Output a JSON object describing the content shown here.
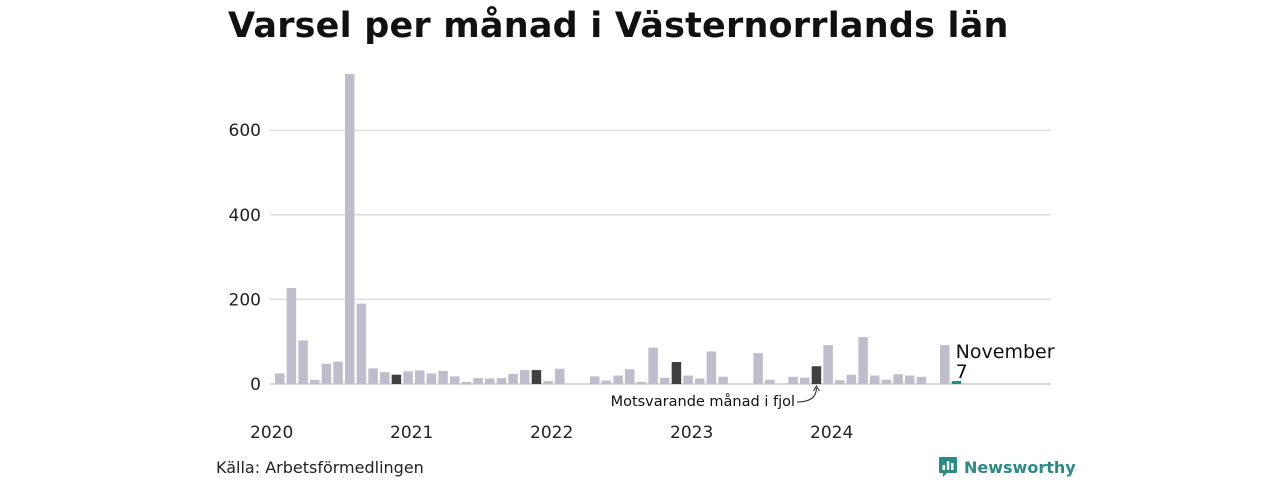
{
  "colors": {
    "bar": "#bfbdcb",
    "bar_last_year": "#404040",
    "bar_current": "#2a8a86",
    "grid": "#dddddd",
    "brand": "#2a8a86"
  },
  "source": "Källa: Arbetsförmedlingen",
  "brand": {
    "name": "Newsworthy",
    "icon": "bar-chart-speech-bubble-icon"
  },
  "chart_data": {
    "type": "bar",
    "title": "Varsel per månad i Västernorrlands län",
    "xlabel": "",
    "ylabel": "",
    "ylim": [
      0,
      740
    ],
    "yticks": [
      0,
      200,
      400,
      600
    ],
    "grid": true,
    "x_start": "2020-01",
    "x_end": "2024-12",
    "year_labels": [
      "2020",
      "2021",
      "2022",
      "2023",
      "2024"
    ],
    "categories": [
      "2020-01",
      "2020-02",
      "2020-03",
      "2020-04",
      "2020-05",
      "2020-06",
      "2020-07",
      "2020-08",
      "2020-09",
      "2020-10",
      "2020-11",
      "2020-12",
      "2021-01",
      "2021-02",
      "2021-03",
      "2021-04",
      "2021-05",
      "2021-06",
      "2021-07",
      "2021-08",
      "2021-09",
      "2021-10",
      "2021-11",
      "2021-12",
      "2022-01",
      "2022-02",
      "2022-03",
      "2022-04",
      "2022-05",
      "2022-06",
      "2022-07",
      "2022-08",
      "2022-09",
      "2022-10",
      "2022-11",
      "2022-12",
      "2023-01",
      "2023-02",
      "2023-03",
      "2023-04",
      "2023-05",
      "2023-06",
      "2023-07",
      "2023-08",
      "2023-09",
      "2023-10",
      "2023-11",
      "2023-12",
      "2024-01",
      "2024-02",
      "2024-03",
      "2024-04",
      "2024-05",
      "2024-06",
      "2024-07",
      "2024-08",
      "2024-09",
      "2024-10",
      "2024-11",
      "2024-12"
    ],
    "values": [
      25,
      227,
      103,
      10,
      48,
      53,
      733,
      190,
      37,
      28,
      22,
      30,
      32,
      25,
      31,
      18,
      5,
      14,
      13,
      14,
      24,
      33,
      33,
      7,
      36,
      0,
      0,
      18,
      8,
      20,
      35,
      5,
      86,
      15,
      52,
      20,
      13,
      77,
      17,
      0,
      0,
      73,
      10,
      0,
      17,
      15,
      42,
      92,
      9,
      22,
      111,
      20,
      10,
      23,
      20,
      17,
      0,
      92,
      7,
      null
    ],
    "highlight_last_year": [
      "2020-11",
      "2021-11",
      "2022-11",
      "2023-11"
    ],
    "highlight_current": "2024-11",
    "current_label": {
      "month": "November",
      "value": "7"
    },
    "annotation": {
      "text": "Motsvarande månad i fjol",
      "target": "2023-11"
    }
  }
}
